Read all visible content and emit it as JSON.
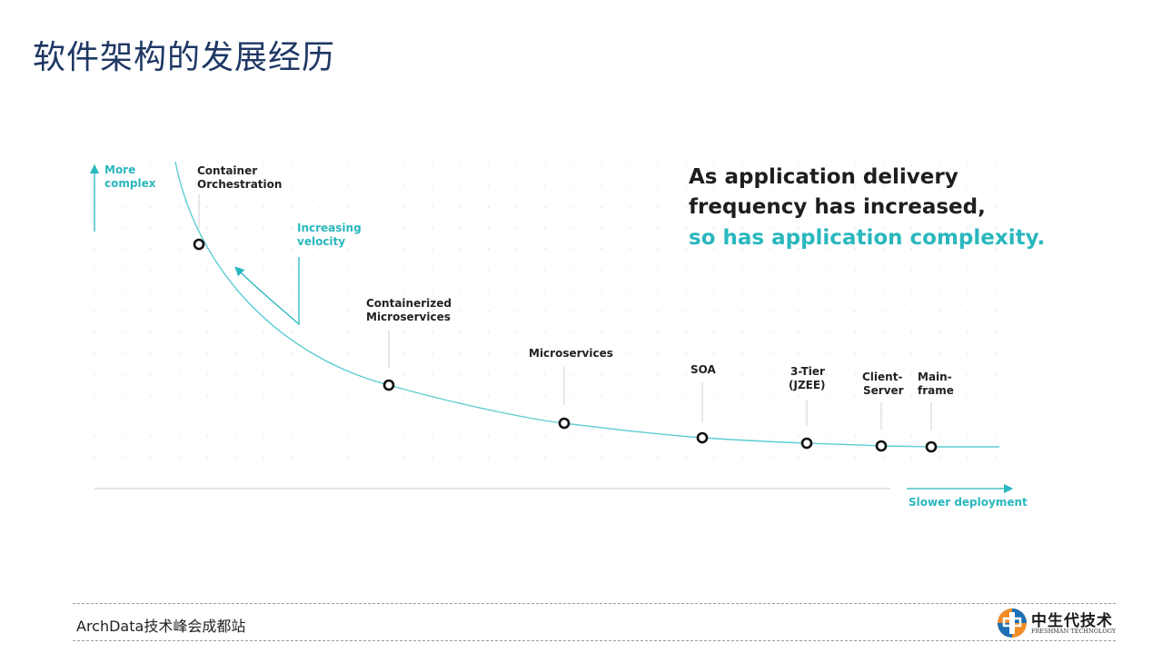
{
  "slide": {
    "title": "软件架构的发展经历"
  },
  "diagram": {
    "y_axis_label": [
      "More",
      "complex"
    ],
    "x_axis_label": "Slower deployment",
    "velocity_label": [
      "Increasing",
      "velocity"
    ],
    "headline": {
      "line1": "As application delivery",
      "line2": "frequency has increased,",
      "line3": "so has application complexity."
    },
    "stages": [
      {
        "lines": [
          "Container",
          "Orchestration"
        ]
      },
      {
        "lines": [
          "Containerized",
          "Microservices"
        ]
      },
      {
        "lines": [
          "Microservices"
        ]
      },
      {
        "lines": [
          "SOA"
        ]
      },
      {
        "lines": [
          "3-Tier",
          "(JZEE)"
        ]
      },
      {
        "lines": [
          "Client-",
          "Server"
        ]
      },
      {
        "lines": [
          "Main-",
          "frame"
        ]
      }
    ],
    "colors": {
      "accent": "#2ab7be",
      "curve": "#5ccdd1",
      "text": "#222222",
      "axis": "#d6dde0"
    }
  },
  "footer": {
    "event": "ArchData技术峰会成都站",
    "logo_name": "中生代技术",
    "logo_subtitle": "FRESHMAN TECHNOLOGY"
  }
}
